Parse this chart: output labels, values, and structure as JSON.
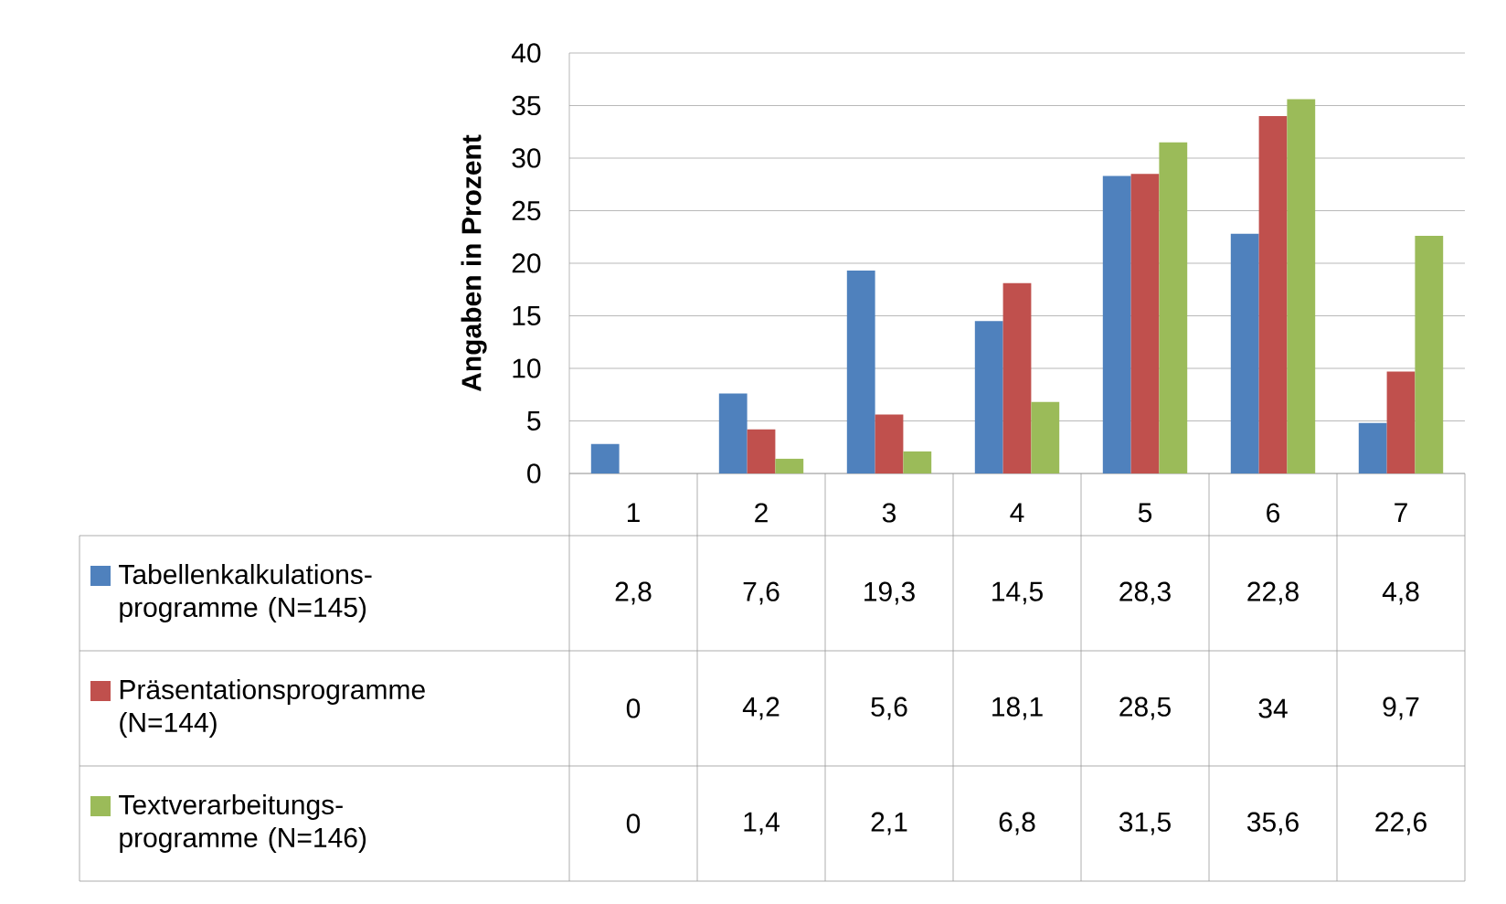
{
  "chart_data": {
    "type": "bar",
    "ylabel": "Angaben in Prozent",
    "categories": [
      "1",
      "2",
      "3",
      "4",
      "5",
      "6",
      "7"
    ],
    "series": [
      {
        "name": "Tabellenkalkulations-programme (N=145)",
        "color": "#4f81bd",
        "values": [
          2.8,
          7.6,
          19.3,
          14.5,
          28.3,
          22.8,
          4.8
        ],
        "value_labels": [
          "2,8",
          "7,6",
          "19,3",
          "14,5",
          "28,3",
          "22,8",
          "4,8"
        ]
      },
      {
        "name": "Präsentationsprogramme (N=144)",
        "color": "#c0504d",
        "values": [
          0,
          4.2,
          5.6,
          18.1,
          28.5,
          34,
          9.7
        ],
        "value_labels": [
          "0",
          "4,2",
          "5,6",
          "18,1",
          "28,5",
          "34",
          "9,7"
        ]
      },
      {
        "name": "Textverarbeitungs-programme (N=146)",
        "color": "#9bbb59",
        "values": [
          0,
          1.4,
          2.1,
          6.8,
          31.5,
          35.6,
          22.6
        ],
        "value_labels": [
          "0",
          "1,4",
          "2,1",
          "6,8",
          "31,5",
          "35,6",
          "22,6"
        ]
      }
    ],
    "ylim": [
      0,
      40
    ],
    "yticks": [
      0,
      5,
      10,
      15,
      20,
      25,
      30,
      35,
      40
    ],
    "grid": "y",
    "legend": "bottom"
  }
}
